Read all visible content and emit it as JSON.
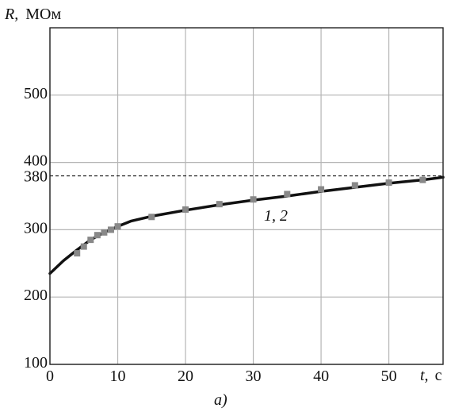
{
  "chart_data": {
    "type": "line",
    "ylabel_var": "R,",
    "ylabel_unit": "МОм",
    "xlabel_var": "t,",
    "xlabel_unit": "с",
    "panel_label": "a)",
    "xlim": [
      0,
      58
    ],
    "ylim": [
      100,
      600
    ],
    "x_ticks": [
      0,
      10,
      20,
      30,
      40,
      50
    ],
    "x_tick_labels": [
      "0",
      "10",
      "20",
      "30",
      "40",
      "50"
    ],
    "y_ticks": [
      100,
      200,
      300,
      400,
      500
    ],
    "y_tick_labels": [
      "100",
      "200",
      "300",
      "400",
      "500"
    ],
    "grid": true,
    "reference_line": {
      "y": 380,
      "label": "380",
      "style": "dashed"
    },
    "curve_label": "1, 2",
    "series": [
      {
        "kind": "line",
        "x": [
          0,
          2,
          4,
          6,
          8,
          10,
          12,
          15,
          20,
          25,
          30,
          35,
          40,
          45,
          50,
          55,
          58
        ],
        "y": [
          235,
          254,
          270,
          285,
          296,
          305,
          313,
          320,
          329,
          337,
          344,
          350,
          357,
          363,
          369,
          374,
          378
        ]
      },
      {
        "kind": "scatter",
        "marker": "square",
        "x": [
          4,
          5,
          6,
          7,
          8,
          9,
          10,
          15,
          20,
          25,
          30,
          35,
          40,
          45,
          50,
          55
        ],
        "y": [
          265,
          275,
          285,
          292,
          296,
          300,
          305,
          319,
          330,
          338,
          345,
          353,
          360,
          366,
          370,
          374
        ]
      }
    ]
  },
  "colors": {
    "line": "#111111",
    "marker": "#888888",
    "grid": "#b5b5b5",
    "axis": "#222222"
  }
}
